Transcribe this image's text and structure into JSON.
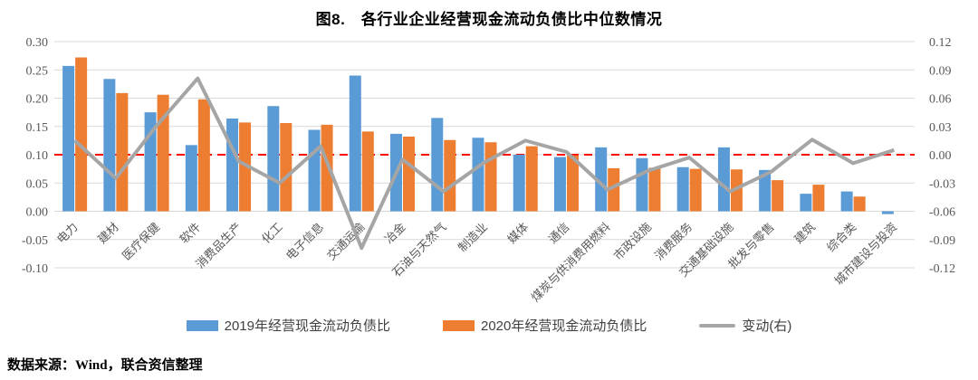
{
  "title": "图8.　各行业企业经营现金流动负债比中位数情况",
  "source": "数据来源：Wind，联合资信整理",
  "colors": {
    "bar_2019": "#5B9BD5",
    "bar_2020": "#ED7D31",
    "change_line": "#A5A5A5",
    "reference_line": "#FF0000",
    "grid": "#D9D9D9",
    "axis_text": "#595959"
  },
  "chart_data": {
    "type": "bar",
    "subtype": "grouped-bar-with-line",
    "title": "图8.　各行业企业经营现金流动负债比中位数情况",
    "categories": [
      "电力",
      "建材",
      "医疗保健",
      "软件",
      "消费品生产",
      "化工",
      "电子信息",
      "交通运输",
      "冶金",
      "石油与天然气",
      "制造业",
      "媒体",
      "通信",
      "煤炭与供消费用燃料",
      "市政设施",
      "消费服务",
      "交通基础设施",
      "批发与零售",
      "建筑",
      "综合类",
      "城市建设与投资"
    ],
    "series": [
      {
        "name": "2019年经营现金流动负债比",
        "type": "bar",
        "axis": "left",
        "color": "#5B9BD5",
        "values": [
          0.257,
          0.234,
          0.175,
          0.117,
          0.164,
          0.186,
          0.144,
          0.24,
          0.137,
          0.165,
          0.13,
          0.1,
          0.096,
          0.113,
          0.094,
          0.078,
          0.113,
          0.073,
          0.031,
          0.035,
          -0.005
        ]
      },
      {
        "name": "2020年经营现金流动负债比",
        "type": "bar",
        "axis": "left",
        "color": "#ED7D31",
        "values": [
          0.272,
          0.209,
          0.206,
          0.198,
          0.157,
          0.156,
          0.153,
          0.141,
          0.132,
          0.126,
          0.122,
          0.115,
          0.099,
          0.076,
          0.077,
          0.075,
          0.074,
          0.055,
          0.047,
          0.026,
          0.0
        ]
      },
      {
        "name": "变动(右)",
        "type": "line",
        "axis": "right",
        "color": "#A5A5A5",
        "values": [
          0.015,
          -0.025,
          0.031,
          0.081,
          -0.007,
          -0.03,
          0.009,
          -0.099,
          -0.005,
          -0.039,
          -0.008,
          0.015,
          0.003,
          -0.037,
          -0.017,
          -0.003,
          -0.039,
          -0.018,
          0.016,
          -0.009,
          0.005
        ]
      }
    ],
    "left_axis": {
      "min": -0.1,
      "max": 0.3,
      "step": 0.05,
      "ticks": [
        "0.30",
        "0.25",
        "0.20",
        "0.15",
        "0.10",
        "0.05",
        "0.00",
        "-0.05",
        "-0.10"
      ]
    },
    "right_axis": {
      "min": -0.12,
      "max": 0.12,
      "step": 0.03,
      "ticks": [
        "0.12",
        "0.09",
        "0.06",
        "0.03",
        "0.00",
        "-0.03",
        "-0.06",
        "-0.09",
        "-0.12"
      ]
    },
    "reference_line": {
      "value_right": 0.0,
      "color": "#FF0000",
      "style": "dashed"
    },
    "grid": true,
    "legend_position": "bottom",
    "category_label_rotation_deg": 45
  }
}
